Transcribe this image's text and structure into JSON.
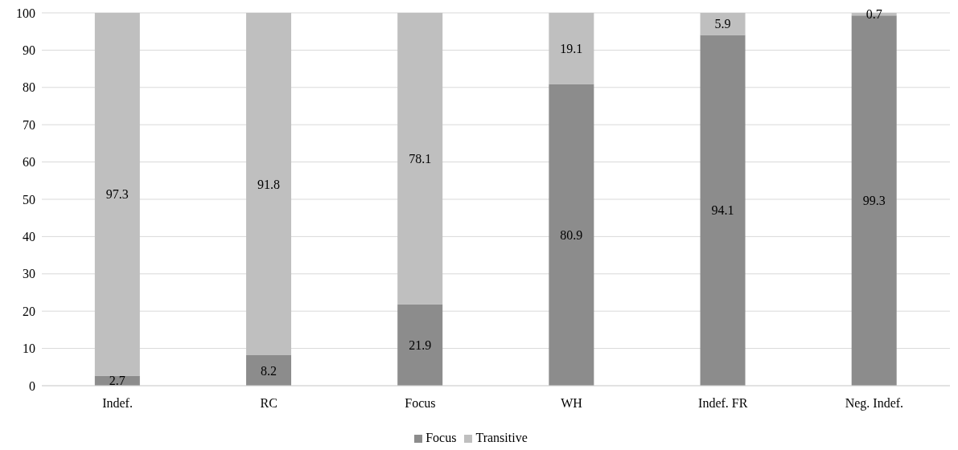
{
  "chart_data": {
    "type": "bar",
    "stacked": true,
    "categories": [
      "Indef.",
      "RC",
      "Focus",
      "WH",
      "Indef. FR",
      "Neg. Indef."
    ],
    "series": [
      {
        "name": "Focus",
        "color": "#8c8c8c",
        "values": [
          2.7,
          8.2,
          21.9,
          80.9,
          94.1,
          99.3
        ]
      },
      {
        "name": "Transitive",
        "color": "#bfbfbf",
        "values": [
          97.3,
          91.8,
          78.1,
          19.1,
          5.9,
          0.7
        ]
      }
    ],
    "ylim": [
      0,
      100
    ],
    "yticks": [
      0,
      10,
      20,
      30,
      40,
      50,
      60,
      70,
      80,
      90,
      100
    ],
    "grid": "y",
    "legend": "bottom",
    "data_labels": true
  }
}
